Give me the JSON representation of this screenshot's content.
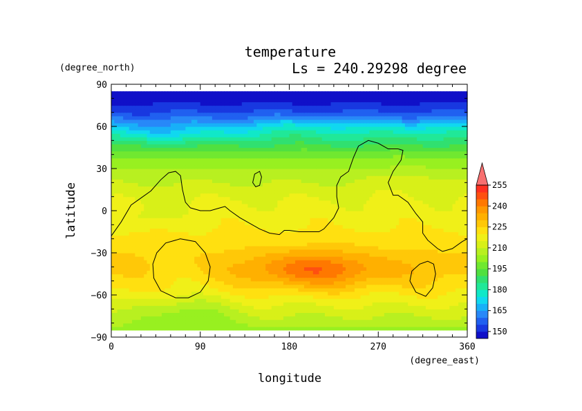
{
  "chart_data": {
    "type": "heatmap",
    "title": "temperature",
    "subtitle": "Ls = 240.29298 degree",
    "xlabel": "longitude",
    "ylabel": "latitude",
    "x_units": "(degree_east)",
    "y_units": "(degree_north)",
    "xlim": [
      0,
      360
    ],
    "ylim": [
      -90,
      90
    ],
    "x_ticks": [
      0,
      90,
      180,
      270,
      360
    ],
    "x_tick_labels": [
      "0",
      "90",
      "180",
      "270",
      "360"
    ],
    "y_ticks": [
      -90,
      -60,
      -30,
      0,
      30,
      60,
      90
    ],
    "y_tick_labels": [
      "−90",
      "−60",
      "−30",
      "0",
      "30",
      "60",
      "90"
    ],
    "data_lat_range": [
      -85,
      85
    ],
    "colorbar": {
      "levels": [
        145,
        150,
        155,
        160,
        165,
        170,
        175,
        180,
        185,
        190,
        195,
        200,
        205,
        210,
        215,
        220,
        225,
        230,
        235,
        240,
        245,
        250,
        255,
        260
      ],
      "colors": [
        "#1010c8",
        "#1838e0",
        "#2060f0",
        "#2888f8",
        "#18b0f8",
        "#10d8f0",
        "#10e8c8",
        "#20e898",
        "#30e070",
        "#50e040",
        "#70e830",
        "#98f020",
        "#b8f020",
        "#d8f018",
        "#f0f018",
        "#ffe010",
        "#ffc808",
        "#ffb000",
        "#ff9800",
        "#ff7800",
        "#ff5010",
        "#ff3020",
        "#f87070"
      ],
      "tick_labels": [
        "150",
        "165",
        "180",
        "195",
        "210",
        "225",
        "240",
        "255"
      ],
      "extend": "max"
    },
    "zonal_profile": {
      "lat": [
        -85,
        -80,
        -75,
        -70,
        -65,
        -60,
        -55,
        -50,
        -45,
        -40,
        -35,
        -30,
        -25,
        -20,
        -15,
        -10,
        -5,
        0,
        5,
        10,
        15,
        20,
        25,
        30,
        35,
        40,
        45,
        50,
        55,
        60,
        65,
        70,
        75,
        80,
        85
      ],
      "temp": [
        203,
        207,
        210,
        213,
        216,
        219,
        222,
        224,
        226,
        227,
        226,
        225,
        223,
        222,
        221,
        219,
        218,
        217,
        216,
        214,
        212,
        210,
        208,
        205,
        202,
        198,
        192,
        186,
        178,
        170,
        162,
        155,
        151,
        148,
        146
      ]
    },
    "anomalies": [
      {
        "lon": 195,
        "lat": -42,
        "lon_width": 55,
        "lat_width": 13,
        "delta": 12
      },
      {
        "lon": 230,
        "lat": -42,
        "lon_width": 70,
        "lat_width": 14,
        "delta": 7
      },
      {
        "lon": 75,
        "lat": -72,
        "lon_width": 45,
        "lat_width": 12,
        "delta": -9
      },
      {
        "lon": 60,
        "lat": -45,
        "lon_width": 35,
        "lat_width": 12,
        "delta": -4
      },
      {
        "lon": 30,
        "lat": -5,
        "lon_width": 30,
        "lat_width": 10,
        "delta": -5
      },
      {
        "lon": 200,
        "lat": 60,
        "lon_width": 60,
        "lat_width": 8,
        "delta": 6
      },
      {
        "lon": 320,
        "lat": 58,
        "lon_width": 40,
        "lat_width": 8,
        "delta": 5
      },
      {
        "lon": 60,
        "lat": 55,
        "lon_width": 50,
        "lat_width": 8,
        "delta": -5
      },
      {
        "lon": 300,
        "lat": 20,
        "lon_width": 40,
        "lat_width": 10,
        "delta": 3
      }
    ],
    "contours": [
      {
        "closed": false,
        "points": [
          [
            0,
            -18
          ],
          [
            10,
            -8
          ],
          [
            20,
            4
          ],
          [
            30,
            9
          ],
          [
            40,
            14
          ],
          [
            50,
            22
          ],
          [
            58,
            27
          ],
          [
            65,
            28
          ],
          [
            70,
            25
          ],
          [
            72,
            15
          ],
          [
            75,
            6
          ],
          [
            80,
            2
          ],
          [
            90,
            0
          ],
          [
            100,
            0
          ],
          [
            110,
            2
          ],
          [
            115,
            3
          ],
          [
            120,
            0
          ],
          [
            130,
            -5
          ],
          [
            140,
            -9
          ],
          [
            150,
            -13
          ],
          [
            160,
            -16
          ],
          [
            170,
            -17
          ],
          [
            175,
            -14
          ],
          [
            180,
            -14
          ],
          [
            190,
            -15
          ],
          [
            200,
            -15
          ],
          [
            210,
            -15
          ],
          [
            215,
            -13
          ],
          [
            225,
            -5
          ],
          [
            230,
            2
          ],
          [
            228,
            10
          ],
          [
            228,
            18
          ],
          [
            232,
            24
          ],
          [
            240,
            28
          ],
          [
            245,
            38
          ],
          [
            250,
            46
          ],
          [
            260,
            50
          ],
          [
            270,
            48
          ],
          [
            280,
            44
          ],
          [
            290,
            44
          ],
          [
            295,
            43
          ],
          [
            293,
            36
          ],
          [
            285,
            28
          ],
          [
            280,
            20
          ],
          [
            285,
            11
          ],
          [
            290,
            11
          ],
          [
            300,
            6
          ],
          [
            308,
            -2
          ],
          [
            315,
            -8
          ],
          [
            315,
            -16
          ],
          [
            320,
            -21
          ],
          [
            330,
            -27
          ],
          [
            335,
            -29
          ],
          [
            345,
            -27
          ],
          [
            355,
            -22
          ],
          [
            360,
            -20
          ]
        ]
      },
      {
        "closed": true,
        "points": [
          [
            145,
            26
          ],
          [
            150,
            28
          ],
          [
            152,
            24
          ],
          [
            150,
            18
          ],
          [
            146,
            17
          ],
          [
            143,
            20
          ]
        ]
      },
      {
        "closed": true,
        "points": [
          [
            70,
            -20
          ],
          [
            85,
            -22
          ],
          [
            95,
            -30
          ],
          [
            100,
            -40
          ],
          [
            98,
            -50
          ],
          [
            90,
            -58
          ],
          [
            78,
            -62
          ],
          [
            65,
            -62
          ],
          [
            50,
            -57
          ],
          [
            43,
            -48
          ],
          [
            42,
            -38
          ],
          [
            46,
            -30
          ],
          [
            55,
            -23
          ]
        ]
      },
      {
        "closed": true,
        "points": [
          [
            320,
            -36
          ],
          [
            326,
            -38
          ],
          [
            328,
            -45
          ],
          [
            325,
            -55
          ],
          [
            318,
            -61
          ],
          [
            308,
            -58
          ],
          [
            302,
            -50
          ],
          [
            304,
            -43
          ],
          [
            312,
            -38
          ]
        ]
      }
    ]
  }
}
